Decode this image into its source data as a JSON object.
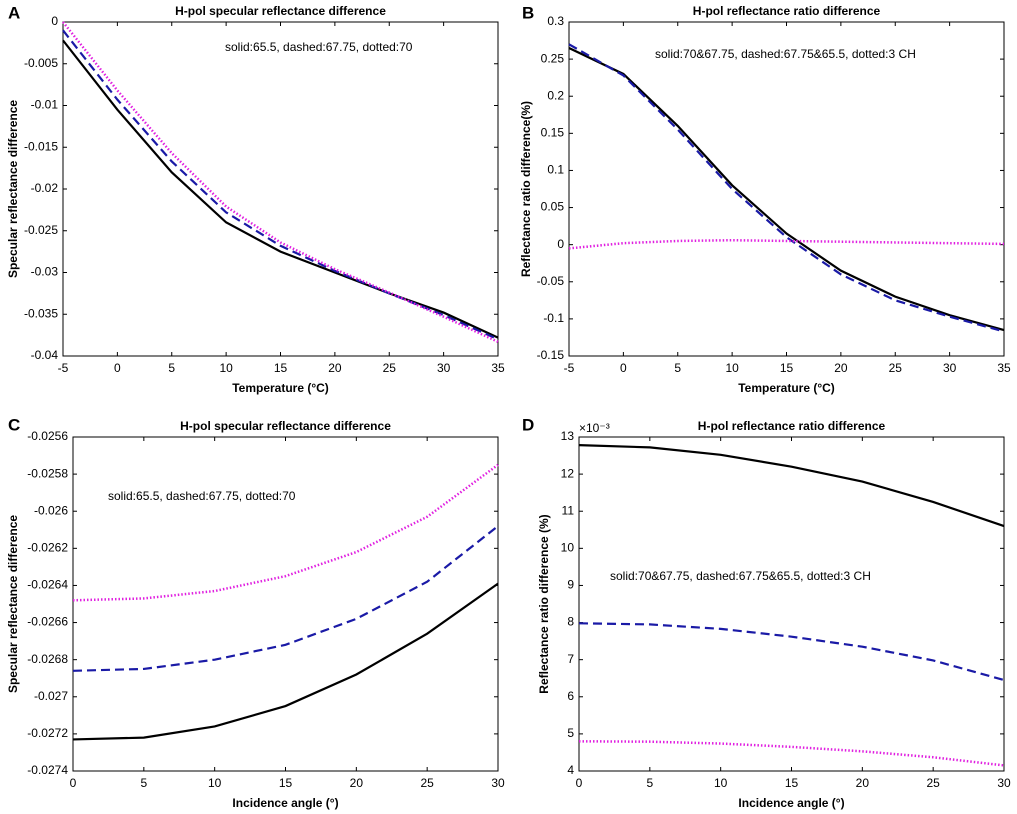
{
  "chart_data": [
    {
      "type": "line",
      "panel_label": "A",
      "title": "H-pol specular reflectance difference",
      "x_label": "Temperature (°C)",
      "y_label": "Specular reflectance difference",
      "annotation": "solid:65.5, dashed:67.75, dotted:70",
      "x": [
        -5,
        0,
        5,
        10,
        15,
        20,
        25,
        30,
        35
      ],
      "xlim": [
        -5,
        35
      ],
      "xticks": [
        -5,
        0,
        5,
        10,
        15,
        20,
        25,
        30,
        35
      ],
      "ylim": [
        -0.04,
        0
      ],
      "yticks": [
        -0.04,
        -0.035,
        -0.03,
        -0.025,
        -0.02,
        -0.015,
        -0.01,
        -0.005,
        0
      ],
      "series": [
        {
          "name": "solid",
          "color": "#000000",
          "line_style": "solid",
          "values": [
            -0.0022,
            -0.0105,
            -0.018,
            -0.024,
            -0.0275,
            -0.03,
            -0.0325,
            -0.0348,
            -0.0378
          ]
        },
        {
          "name": "dashed",
          "color": "#1a1aa6",
          "line_style": "dashed",
          "values": [
            -0.001,
            -0.0093,
            -0.0167,
            -0.0228,
            -0.0268,
            -0.0298,
            -0.0325,
            -0.0351,
            -0.038
          ]
        },
        {
          "name": "dotted",
          "color": "#e020e0",
          "line_style": "dotted",
          "values": [
            0,
            -0.0082,
            -0.0157,
            -0.0221,
            -0.0264,
            -0.0296,
            -0.0324,
            -0.0353,
            -0.0383
          ]
        }
      ]
    },
    {
      "type": "line",
      "panel_label": "B",
      "title": "H-pol reflectance ratio difference",
      "x_label": "Temperature (°C)",
      "y_label": "Reflectance ratio difference(%)",
      "annotation": "solid:70&67.75, dashed:67.75&65.5, dotted:3 CH",
      "x": [
        -5,
        0,
        5,
        10,
        15,
        20,
        25,
        30,
        35
      ],
      "xlim": [
        -5,
        35
      ],
      "xticks": [
        -5,
        0,
        5,
        10,
        15,
        20,
        25,
        30,
        35
      ],
      "ylim": [
        -0.15,
        0.3
      ],
      "yticks": [
        -0.15,
        -0.1,
        -0.05,
        0,
        0.05,
        0.1,
        0.15,
        0.2,
        0.25,
        0.3
      ],
      "series": [
        {
          "name": "solid",
          "color": "#000000",
          "line_style": "solid",
          "values": [
            0.265,
            0.23,
            0.16,
            0.08,
            0.015,
            -0.035,
            -0.07,
            -0.095,
            -0.115
          ]
        },
        {
          "name": "dashed",
          "color": "#1a1aa6",
          "line_style": "dashed",
          "values": [
            0.27,
            0.228,
            0.155,
            0.075,
            0.01,
            -0.04,
            -0.075,
            -0.097,
            -0.117
          ]
        },
        {
          "name": "dotted",
          "color": "#e020e0",
          "line_style": "dotted",
          "values": [
            -0.005,
            0.002,
            0.005,
            0.006,
            0.005,
            0.004,
            0.003,
            0.002,
            0.001
          ]
        }
      ]
    },
    {
      "type": "line",
      "panel_label": "C",
      "title": "H-pol specular reflectance difference",
      "x_label": "Incidence angle (°)",
      "y_label": "Specular reflectance difference",
      "annotation": "solid:65.5, dashed:67.75, dotted:70",
      "x": [
        0,
        5,
        10,
        15,
        20,
        25,
        30
      ],
      "xlim": [
        0,
        30
      ],
      "xticks": [
        0,
        5,
        10,
        15,
        20,
        25,
        30
      ],
      "ylim": [
        -0.0274,
        -0.0256
      ],
      "yticks": [
        -0.0274,
        -0.0272,
        -0.027,
        -0.0268,
        -0.0266,
        -0.0264,
        -0.0262,
        -0.026,
        -0.0258,
        -0.0256
      ],
      "series": [
        {
          "name": "solid",
          "color": "#000000",
          "line_style": "solid",
          "values": [
            -0.02723,
            -0.02722,
            -0.02716,
            -0.02705,
            -0.02688,
            -0.02666,
            -0.02639
          ]
        },
        {
          "name": "dashed",
          "color": "#1a1aa6",
          "line_style": "dashed",
          "values": [
            -0.02686,
            -0.02685,
            -0.0268,
            -0.02672,
            -0.02658,
            -0.02638,
            -0.02608
          ]
        },
        {
          "name": "dotted",
          "color": "#e020e0",
          "line_style": "dotted",
          "values": [
            -0.02648,
            -0.02647,
            -0.02643,
            -0.02635,
            -0.02622,
            -0.02603,
            -0.02575
          ]
        }
      ]
    },
    {
      "type": "line",
      "panel_label": "D",
      "title": "H-pol reflectance ratio difference",
      "x_label": "Incidence angle (°)",
      "y_label": "Reflectance ratio difference (%)",
      "annotation": "solid:70&67.75, dashed:67.75&65.5, dotted:3 CH",
      "y_multiplier": "×10⁻³",
      "x": [
        0,
        5,
        10,
        15,
        20,
        25,
        30
      ],
      "xlim": [
        0,
        30
      ],
      "xticks": [
        0,
        5,
        10,
        15,
        20,
        25,
        30
      ],
      "ylim": [
        4,
        13
      ],
      "yticks": [
        4,
        5,
        6,
        7,
        8,
        9,
        10,
        11,
        12,
        13
      ],
      "series": [
        {
          "name": "solid",
          "color": "#000000",
          "line_style": "solid",
          "values": [
            12.78,
            12.72,
            12.52,
            12.2,
            11.8,
            11.25,
            10.6
          ]
        },
        {
          "name": "dashed",
          "color": "#1a1aa6",
          "line_style": "dashed",
          "values": [
            7.98,
            7.95,
            7.83,
            7.62,
            7.35,
            6.98,
            6.45
          ]
        },
        {
          "name": "dotted",
          "color": "#e020e0",
          "line_style": "dotted",
          "values": [
            4.8,
            4.79,
            4.74,
            4.65,
            4.53,
            4.37,
            4.15
          ]
        }
      ]
    }
  ]
}
